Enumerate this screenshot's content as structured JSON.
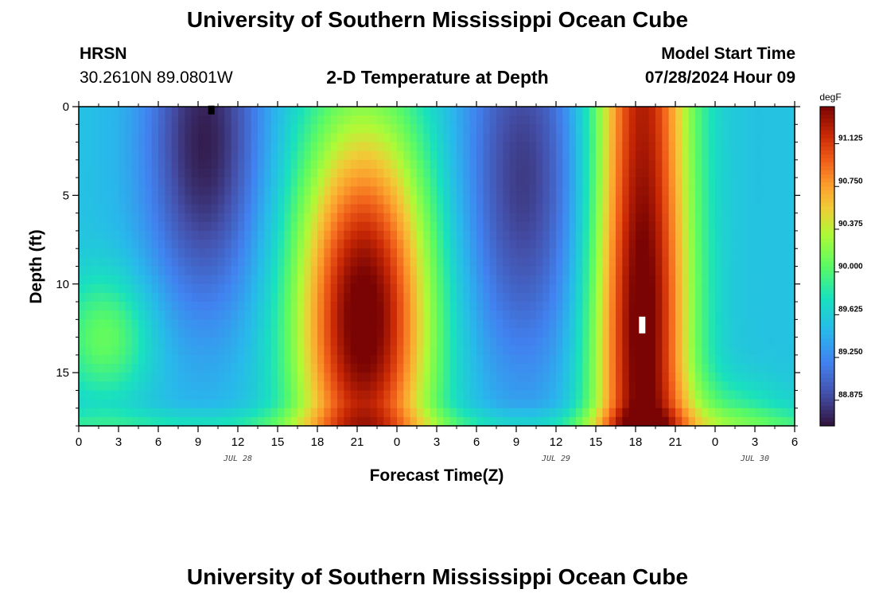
{
  "header": {
    "title": "University of Southern Mississippi Ocean Cube",
    "station": "HRSN",
    "coords": "30.2610N  89.0801W",
    "subtitle": "2-D Temperature at Depth",
    "model_label": "Model Start Time",
    "model_time": "07/28/2024 Hour 09"
  },
  "footer": {
    "title": "University of Southern Mississippi Ocean Cube"
  },
  "chart_data": {
    "type": "heatmap",
    "title": "2-D Temperature at Depth",
    "xlabel": "Forecast Time(Z)",
    "ylabel": "Depth (ft)",
    "xlim": [
      0,
      54
    ],
    "ylim": [
      18,
      0
    ],
    "x_ticks": [
      0,
      3,
      6,
      9,
      12,
      15,
      18,
      21,
      24,
      27,
      30,
      33,
      36,
      39,
      42,
      45,
      48,
      51,
      54
    ],
    "x_tick_labels": [
      "0",
      "3",
      "6",
      "9",
      "12",
      "15",
      "18",
      "21",
      "0",
      "3",
      "6",
      "9",
      "12",
      "15",
      "18",
      "21",
      "0",
      "3",
      "6"
    ],
    "y_ticks": [
      0,
      5,
      10,
      15
    ],
    "y_tick_labels": [
      "0",
      "5",
      "10",
      "15"
    ],
    "date_labels": [
      {
        "x": 12,
        "label": "JUL 28"
      },
      {
        "x": 36,
        "label": "JUL 29"
      },
      {
        "x": 51,
        "label": "JUL 30"
      }
    ],
    "colorbar": {
      "unit": "degF",
      "min": 88.65,
      "max": 91.45,
      "ticks": [
        88.875,
        89.25,
        89.625,
        90.0,
        90.375,
        90.75,
        91.125
      ],
      "tick_labels": [
        "88.875",
        "89.250",
        "89.625",
        "90.000",
        "90.375",
        "90.750",
        "91.125"
      ]
    },
    "markers": [
      {
        "x": 10,
        "depth": 0.3,
        "color": "#000000"
      },
      {
        "x": 42.5,
        "depth": 12.2,
        "color": "#ffffff"
      }
    ],
    "grid": false
  }
}
